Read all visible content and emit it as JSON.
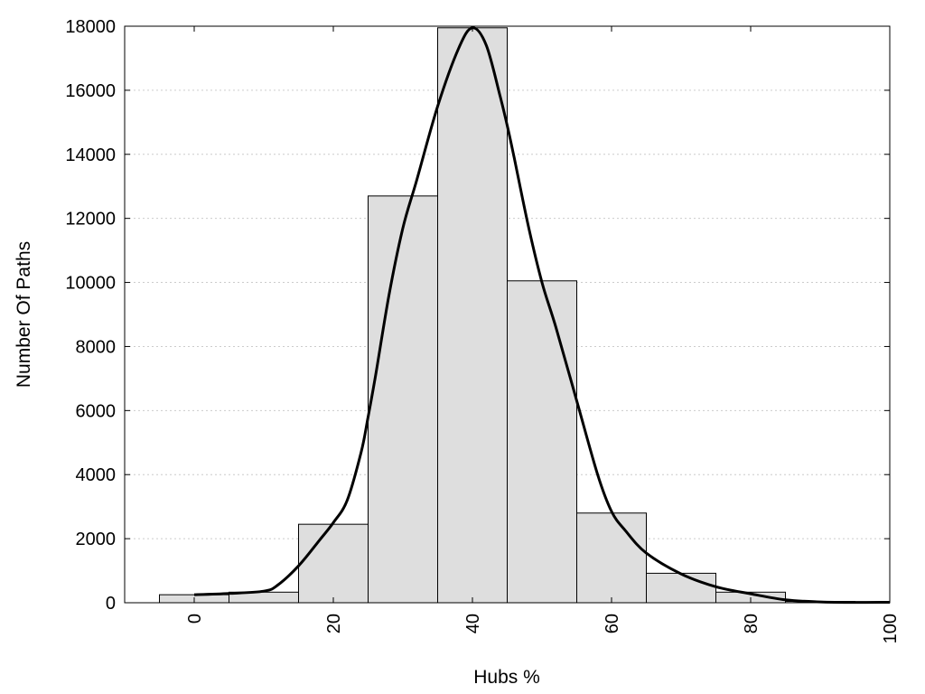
{
  "chart_data": {
    "type": "bar",
    "xlabel": "Hubs %",
    "ylabel": "Number Of Paths",
    "xlim": [
      -10,
      100
    ],
    "ylim": [
      0,
      18000
    ],
    "x_ticks": [
      0,
      20,
      40,
      60,
      80,
      100
    ],
    "y_ticks": [
      0,
      2000,
      4000,
      6000,
      8000,
      10000,
      12000,
      14000,
      16000,
      18000
    ],
    "grid": "horizontal dotted",
    "histogram": {
      "bin_width": 10,
      "bin_centers": [
        0,
        10,
        20,
        30,
        40,
        50,
        60,
        70,
        80,
        90,
        100
      ],
      "values": [
        250,
        330,
        2450,
        12700,
        17950,
        10050,
        2800,
        920,
        330,
        40,
        20
      ]
    },
    "density_curve": {
      "x": [
        0,
        5,
        10,
        12,
        15,
        18,
        20,
        22,
        24,
        25,
        26,
        28,
        30,
        32,
        35,
        38,
        40,
        42,
        44,
        45,
        46,
        48,
        50,
        52,
        55,
        58,
        60,
        62,
        65,
        70,
        75,
        80,
        85,
        90,
        95,
        100
      ],
      "y": [
        250,
        290,
        360,
        550,
        1150,
        1950,
        2500,
        3200,
        4700,
        5800,
        7000,
        9600,
        11700,
        13200,
        15500,
        17300,
        17950,
        17400,
        15800,
        14900,
        13900,
        11800,
        10000,
        8600,
        6300,
        4000,
        2850,
        2250,
        1550,
        900,
        500,
        280,
        90,
        25,
        10,
        15
      ]
    },
    "colors": {
      "bar_fill": "#dedede",
      "bar_stroke": "#000000",
      "curve": "#000000",
      "grid": "#cccccc"
    }
  }
}
